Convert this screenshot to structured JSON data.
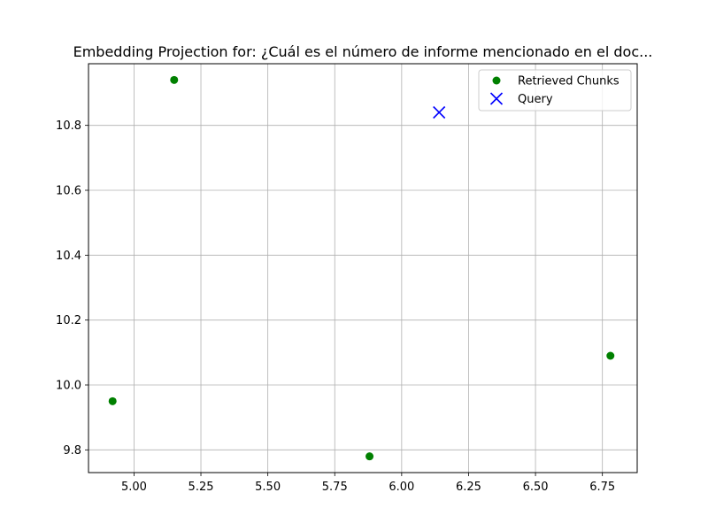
{
  "chart_data": {
    "type": "scatter",
    "title": "Embedding Projection for: ¿Cuál es el número de informe mencionado en el doc...",
    "xlabel": "",
    "ylabel": "",
    "xlim": [
      4.83,
      6.88
    ],
    "ylim": [
      9.73,
      10.99
    ],
    "x_ticks": [
      5.0,
      5.25,
      5.5,
      5.75,
      6.0,
      6.25,
      6.5,
      6.75
    ],
    "x_tick_labels": [
      "5.00",
      "5.25",
      "5.50",
      "5.75",
      "6.00",
      "6.25",
      "6.50",
      "6.75"
    ],
    "y_ticks": [
      9.8,
      10.0,
      10.2,
      10.4,
      10.6,
      10.8
    ],
    "y_tick_labels": [
      "9.8",
      "10.0",
      "10.2",
      "10.4",
      "10.6",
      "10.8"
    ],
    "grid": true,
    "legend_position": "top-right",
    "series": [
      {
        "name": "Retrieved Chunks",
        "marker": "circle",
        "color": "#008000",
        "points": [
          {
            "x": 5.15,
            "y": 10.94
          },
          {
            "x": 4.92,
            "y": 9.95
          },
          {
            "x": 5.88,
            "y": 9.78
          },
          {
            "x": 6.78,
            "y": 10.09
          }
        ]
      },
      {
        "name": "Query",
        "marker": "x",
        "color": "#0000ff",
        "points": [
          {
            "x": 6.14,
            "y": 10.84
          }
        ]
      }
    ]
  }
}
